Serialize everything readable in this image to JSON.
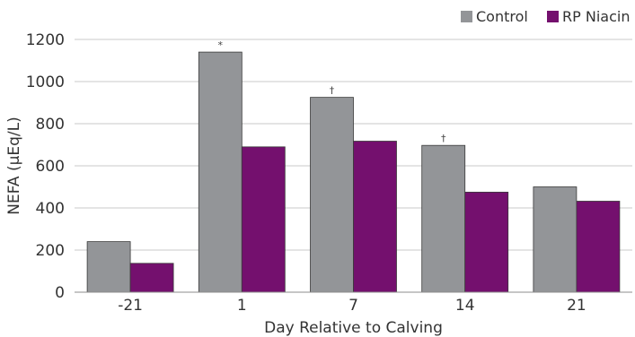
{
  "chart_data": {
    "type": "bar",
    "xlabel": "Day Relative to Calving",
    "ylabel": "NEFA (µEq/L)",
    "ylim": [
      0,
      1200
    ],
    "yticks": [
      0,
      200,
      400,
      600,
      800,
      1000,
      1200
    ],
    "grid": "horizontal",
    "legend_position": "top-right",
    "categories": [
      "-21",
      "1",
      "7",
      "14",
      "21"
    ],
    "series": [
      {
        "name": "Control",
        "color": "#939598",
        "values": [
          240,
          1140,
          925,
          697,
          500
        ]
      },
      {
        "name": "RP Niacin",
        "color": "#74106e",
        "values": [
          137,
          690,
          717,
          475,
          432
        ]
      }
    ],
    "annotations": [
      "",
      "*",
      "†",
      "†",
      ""
    ]
  }
}
